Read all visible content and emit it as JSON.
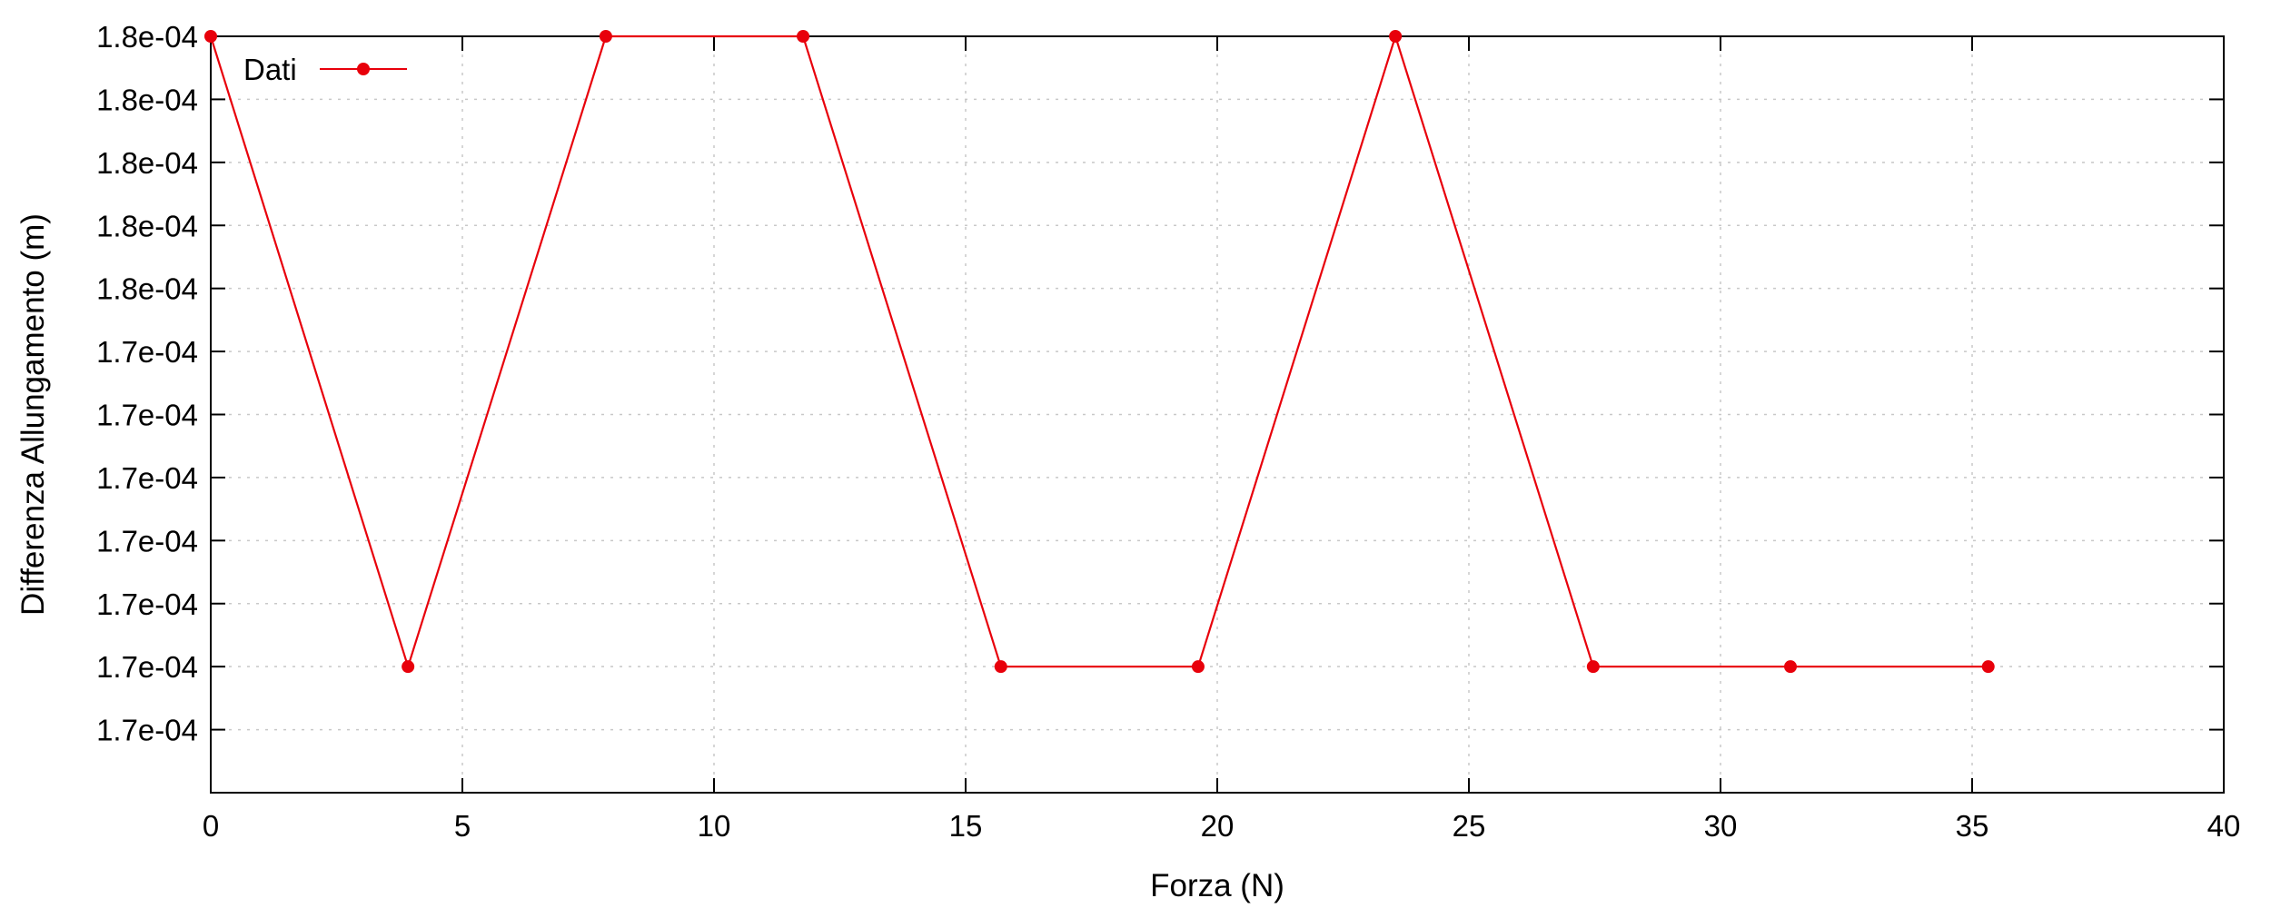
{
  "chart_data": {
    "type": "line",
    "title": "",
    "xlabel": "Forza (N)",
    "ylabel": "Differenza Allungamento (m)",
    "xlim": [
      0,
      40
    ],
    "ylim": [
      0.000168,
      0.00018
    ],
    "grid": true,
    "legend_position": "top-left",
    "x_ticks": [
      "0",
      "5",
      "10",
      "15",
      "20",
      "25",
      "30",
      "35",
      "40"
    ],
    "x_tick_values": [
      0,
      5,
      10,
      15,
      20,
      25,
      30,
      35,
      40
    ],
    "y_ticks": [
      "1.8e-04",
      "1.8e-04",
      "1.8e-04",
      "1.8e-04",
      "1.8e-04",
      "1.7e-04",
      "1.7e-04",
      "1.7e-04",
      "1.7e-04",
      "1.7e-04",
      "1.7e-04",
      "1.7e-04"
    ],
    "y_tick_values": [
      0.00018,
      0.000179,
      0.000178,
      0.000177,
      0.000176,
      0.000175,
      0.000174,
      0.000173,
      0.000172,
      0.000171,
      0.00017,
      0.000169
    ],
    "series": [
      {
        "name": "Dati",
        "color": "#e8000b",
        "marker": "circle",
        "x": [
          0,
          3.92,
          7.85,
          11.77,
          15.7,
          19.62,
          23.54,
          27.47,
          31.39,
          35.32
        ],
        "y": [
          0.00018,
          0.00017,
          0.00018,
          0.00018,
          0.00017,
          0.00017,
          0.00018,
          0.00017,
          0.00017,
          0.00017
        ]
      }
    ]
  }
}
